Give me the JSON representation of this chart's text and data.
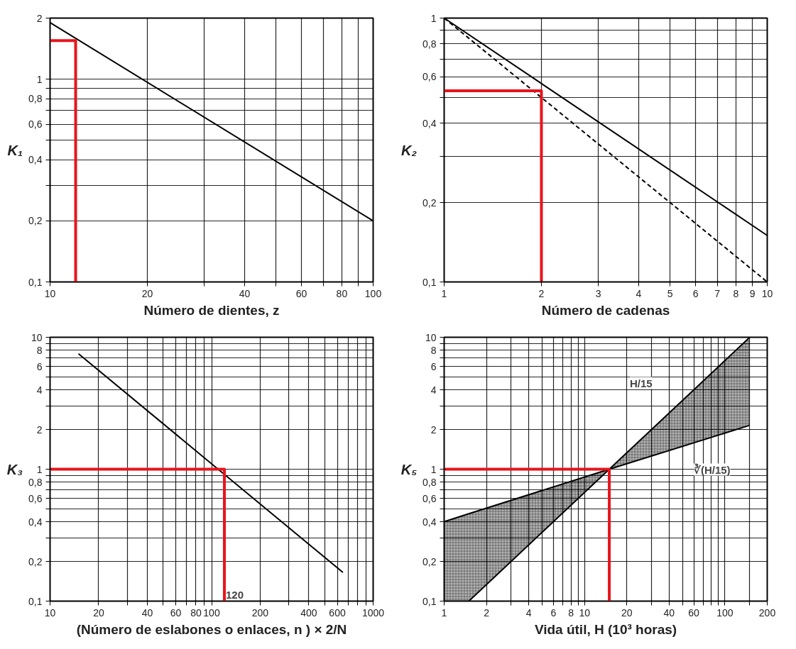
{
  "chart_data": [
    {
      "type": "line",
      "xlabel": "Número de dientes, z",
      "ylabel": "K₁",
      "log": "xy",
      "grid": true,
      "xlim": [
        10,
        100
      ],
      "ylim": [
        0.1,
        2
      ],
      "xticks": [
        10,
        20,
        {
          "value": 30,
          "label": null
        },
        40,
        {
          "value": 50,
          "label": null
        },
        60,
        {
          "value": 70,
          "label": null
        },
        80,
        {
          "value": 90,
          "label": null
        },
        100
      ],
      "yticks": [
        {
          "value": 0.1,
          "label": "0,1"
        },
        {
          "value": 0.2,
          "label": "0,2"
        },
        {
          "value": 0.3,
          "label": null
        },
        {
          "value": 0.4,
          "label": "0,4"
        },
        {
          "value": 0.5,
          "label": null
        },
        {
          "value": 0.6,
          "label": "0,6"
        },
        {
          "value": 0.7,
          "label": null
        },
        {
          "value": 0.8,
          "label": "0,8"
        },
        {
          "value": 0.9,
          "label": null
        },
        1,
        2
      ],
      "series": [
        {
          "color": "#000000",
          "x": [
            10,
            100
          ],
          "values": [
            1.9,
            0.2
          ]
        },
        {
          "color": "#e8141c",
          "x": [
            10,
            12,
            12
          ],
          "values": [
            1.55,
            1.55,
            0.1
          ]
        }
      ]
    },
    {
      "type": "line",
      "xlabel": "Número de cadenas",
      "ylabel": "K₂",
      "log": "xy",
      "grid": true,
      "xlim": [
        1,
        10
      ],
      "ylim": [
        0.1,
        1
      ],
      "xticks": [
        1,
        2,
        3,
        4,
        5,
        6,
        7,
        8,
        9,
        10
      ],
      "yticks": [
        {
          "value": 0.1,
          "label": "0,1"
        },
        {
          "value": 0.2,
          "label": "0,2"
        },
        {
          "value": 0.3,
          "label": null
        },
        {
          "value": 0.4,
          "label": "0,4"
        },
        {
          "value": 0.5,
          "label": null
        },
        {
          "value": 0.6,
          "label": "0,6"
        },
        {
          "value": 0.7,
          "label": null
        },
        {
          "value": 0.8,
          "label": "0,8"
        },
        {
          "value": 0.9,
          "label": null
        },
        1
      ],
      "series": [
        {
          "color": "#000000",
          "x": [
            1,
            10
          ],
          "values": [
            1,
            0.15
          ]
        },
        {
          "color": "#000000",
          "line_style": "dashed",
          "x": [
            1,
            10
          ],
          "values": [
            1,
            0.1
          ]
        },
        {
          "color": "#e8141c",
          "x": [
            1,
            2,
            2
          ],
          "values": [
            0.53,
            0.53,
            0.1
          ]
        }
      ]
    },
    {
      "type": "line",
      "xlabel": "(Número de eslabones o enlaces, n ) × 2/N",
      "ylabel": "K₃",
      "log": "xy",
      "grid": true,
      "xlim": [
        10,
        1000
      ],
      "ylim": [
        0.1,
        10
      ],
      "xticks": [
        10,
        20,
        {
          "value": 30,
          "label": null
        },
        40,
        {
          "value": 50,
          "label": null
        },
        60,
        {
          "value": 70,
          "label": null
        },
        80,
        {
          "value": 90,
          "label": null
        },
        100,
        200,
        {
          "value": 300,
          "label": null
        },
        400,
        {
          "value": 500,
          "label": null
        },
        600,
        {
          "value": 700,
          "label": null
        },
        {
          "value": 800,
          "label": null
        },
        {
          "value": 900,
          "label": null
        },
        1000
      ],
      "yticks": [
        {
          "value": 0.1,
          "label": "0,1"
        },
        {
          "value": 0.2,
          "label": "0,2"
        },
        {
          "value": 0.3,
          "label": null
        },
        {
          "value": 0.4,
          "label": "0,4"
        },
        {
          "value": 0.5,
          "label": null
        },
        {
          "value": 0.6,
          "label": "0,6"
        },
        {
          "value": 0.7,
          "label": null
        },
        {
          "value": 0.8,
          "label": "0,8"
        },
        {
          "value": 0.9,
          "label": null
        },
        1,
        2,
        {
          "value": 3,
          "label": null
        },
        4,
        {
          "value": 5,
          "label": null
        },
        6,
        {
          "value": 7,
          "label": null
        },
        8,
        {
          "value": 9,
          "label": null
        },
        10
      ],
      "annotations": [
        {
          "text": "120",
          "x": 120,
          "y": 0.1
        }
      ],
      "series": [
        {
          "color": "#000000",
          "x": [
            15,
            650
          ],
          "values": [
            7.5,
            0.165
          ]
        },
        {
          "color": "#e8141c",
          "x": [
            10,
            120,
            120
          ],
          "values": [
            1,
            1,
            0.1
          ]
        }
      ]
    },
    {
      "type": "line",
      "xlabel": "Vida útil, H (10³ horas)",
      "ylabel": "K₅",
      "log": "xy",
      "grid": true,
      "xlim": [
        1,
        200
      ],
      "ylim": [
        0.1,
        10
      ],
      "xticks": [
        1,
        2,
        {
          "value": 3,
          "label": null
        },
        4,
        {
          "value": 5,
          "label": null
        },
        6,
        {
          "value": 7,
          "label": null
        },
        8,
        {
          "value": 9,
          "label": null
        },
        10,
        20,
        {
          "value": 30,
          "label": null
        },
        40,
        {
          "value": 50,
          "label": null
        },
        60,
        {
          "value": 70,
          "label": null
        },
        {
          "value": 80,
          "label": null
        },
        {
          "value": 90,
          "label": null
        },
        100,
        {
          "value": 150,
          "label": null
        },
        200
      ],
      "yticks": [
        {
          "value": 0.1,
          "label": "0,1"
        },
        {
          "value": 0.2,
          "label": "0,2"
        },
        {
          "value": 0.3,
          "label": null
        },
        {
          "value": 0.4,
          "label": "0,4"
        },
        {
          "value": 0.5,
          "label": null
        },
        {
          "value": 0.6,
          "label": "0,6"
        },
        {
          "value": 0.7,
          "label": null
        },
        {
          "value": 0.8,
          "label": "0,8"
        },
        {
          "value": 0.9,
          "label": null
        },
        1,
        2,
        {
          "value": 3,
          "label": null
        },
        4,
        {
          "value": 5,
          "label": null
        },
        6,
        {
          "value": 7,
          "label": null
        },
        8,
        {
          "value": 9,
          "label": null
        },
        10
      ],
      "series": [
        {
          "name": "H/15",
          "color": "#000000",
          "x": [
            1.5,
            15,
            150
          ],
          "values": [
            0.1,
            1,
            10
          ]
        },
        {
          "name": "∛(H/15)",
          "color": "#000000",
          "x": [
            1,
            1.5,
            15,
            150
          ],
          "values": [
            0.4,
            0.46,
            1,
            2.15
          ],
          "lower": [
            0.1,
            0.1,
            1,
            2.15
          ],
          "upper": [
            0.4,
            0.46,
            1,
            10
          ]
        },
        {
          "color": "#e8141c",
          "x": [
            1,
            15,
            15
          ],
          "values": [
            1,
            1,
            0.1
          ]
        }
      ]
    }
  ]
}
